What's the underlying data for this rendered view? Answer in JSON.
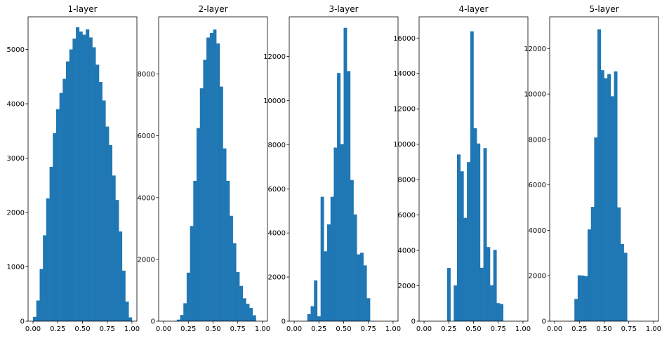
{
  "colors": {
    "bar": "#1f77b4",
    "axis": "#000000",
    "background": "#ffffff"
  },
  "chart_data": [
    {
      "type": "bar",
      "title": "1-layer",
      "xlabel": "",
      "ylabel": "",
      "xlim": [
        -0.05,
        1.05
      ],
      "ylim": [
        0,
        5600
      ],
      "xticks": [
        "0.00",
        "0.25",
        "0.50",
        "0.75",
        "1.00"
      ],
      "yticks": [
        "0",
        "1000",
        "2000",
        "3000",
        "4000",
        "5000"
      ],
      "bins": [
        [
          0.0,
          0.033
        ],
        [
          0.033,
          0.067
        ],
        [
          0.067,
          0.1
        ],
        [
          0.1,
          0.133
        ],
        [
          0.133,
          0.167
        ],
        [
          0.167,
          0.2
        ],
        [
          0.2,
          0.233
        ],
        [
          0.233,
          0.267
        ],
        [
          0.267,
          0.3
        ],
        [
          0.3,
          0.333
        ],
        [
          0.333,
          0.367
        ],
        [
          0.367,
          0.4
        ],
        [
          0.4,
          0.433
        ],
        [
          0.433,
          0.467
        ],
        [
          0.467,
          0.5
        ],
        [
          0.5,
          0.533
        ],
        [
          0.533,
          0.567
        ],
        [
          0.567,
          0.6
        ],
        [
          0.6,
          0.633
        ],
        [
          0.633,
          0.667
        ],
        [
          0.667,
          0.7
        ],
        [
          0.7,
          0.733
        ],
        [
          0.733,
          0.767
        ],
        [
          0.767,
          0.8
        ],
        [
          0.8,
          0.833
        ],
        [
          0.833,
          0.867
        ],
        [
          0.867,
          0.9
        ],
        [
          0.9,
          0.933
        ],
        [
          0.933,
          0.967
        ],
        [
          0.967,
          1.0
        ]
      ],
      "values": [
        80,
        380,
        960,
        1580,
        2260,
        2840,
        3460,
        3900,
        4200,
        4460,
        4780,
        5000,
        5200,
        5410,
        5330,
        5270,
        5370,
        5220,
        5040,
        4720,
        4400,
        4060,
        3580,
        3240,
        2680,
        2230,
        1650,
        930,
        360,
        70
      ]
    },
    {
      "type": "bar",
      "title": "2-layer",
      "xlabel": "",
      "ylabel": "",
      "xlim": [
        -0.05,
        1.05
      ],
      "ylim": [
        0,
        9850
      ],
      "xticks": [
        "0.00",
        "0.25",
        "0.50",
        "0.75",
        "1.00"
      ],
      "yticks": [
        "0",
        "2000",
        "4000",
        "6000",
        "8000"
      ],
      "bins": [
        [
          0.133,
          0.167
        ],
        [
          0.167,
          0.2
        ],
        [
          0.2,
          0.233
        ],
        [
          0.233,
          0.267
        ],
        [
          0.267,
          0.3
        ],
        [
          0.3,
          0.333
        ],
        [
          0.333,
          0.367
        ],
        [
          0.367,
          0.4
        ],
        [
          0.4,
          0.433
        ],
        [
          0.433,
          0.467
        ],
        [
          0.467,
          0.5
        ],
        [
          0.5,
          0.533
        ],
        [
          0.533,
          0.567
        ],
        [
          0.567,
          0.6
        ],
        [
          0.6,
          0.633
        ],
        [
          0.633,
          0.667
        ],
        [
          0.667,
          0.7
        ],
        [
          0.7,
          0.733
        ],
        [
          0.733,
          0.767
        ],
        [
          0.767,
          0.8
        ],
        [
          0.8,
          0.833
        ],
        [
          0.833,
          0.867
        ],
        [
          0.867,
          0.9
        ],
        [
          0.9,
          0.933
        ]
      ],
      "values": [
        50,
        200,
        580,
        1570,
        3080,
        4540,
        6250,
        7540,
        8460,
        9180,
        9330,
        9440,
        8990,
        7590,
        5590,
        4540,
        3410,
        2520,
        1590,
        1140,
        740,
        560,
        430,
        190
      ]
    },
    {
      "type": "bar",
      "title": "3-layer",
      "xlabel": "",
      "ylabel": "",
      "xlim": [
        -0.05,
        1.05
      ],
      "ylim": [
        0,
        13800
      ],
      "xticks": [
        "0.00",
        "0.25",
        "0.50",
        "0.75",
        "1.00"
      ],
      "yticks": [
        "0",
        "2000",
        "4000",
        "6000",
        "8000",
        "10000",
        "12000"
      ],
      "bins": [
        [
          0.133,
          0.167
        ],
        [
          0.167,
          0.2
        ],
        [
          0.2,
          0.233
        ],
        [
          0.233,
          0.267
        ],
        [
          0.267,
          0.3
        ],
        [
          0.3,
          0.333
        ],
        [
          0.333,
          0.367
        ],
        [
          0.367,
          0.4
        ],
        [
          0.4,
          0.433
        ],
        [
          0.433,
          0.467
        ],
        [
          0.467,
          0.5
        ],
        [
          0.5,
          0.533
        ],
        [
          0.533,
          0.567
        ],
        [
          0.567,
          0.6
        ],
        [
          0.6,
          0.633
        ],
        [
          0.633,
          0.667
        ],
        [
          0.667,
          0.7
        ],
        [
          0.7,
          0.733
        ],
        [
          0.733,
          0.767
        ]
      ],
      "values": [
        320,
        680,
        1850,
        220,
        5640,
        3170,
        4390,
        5640,
        7870,
        11250,
        8030,
        13300,
        11340,
        6400,
        4840,
        3030,
        3100,
        2530,
        1040
      ]
    },
    {
      "type": "bar",
      "title": "4-layer",
      "xlabel": "",
      "ylabel": "",
      "xlim": [
        -0.05,
        1.05
      ],
      "ylim": [
        0,
        17200
      ],
      "xticks": [
        "0.00",
        "0.25",
        "0.50",
        "0.75",
        "1.00"
      ],
      "yticks": [
        "0",
        "2000",
        "4000",
        "6000",
        "8000",
        "10000",
        "12000",
        "14000",
        "16000"
      ],
      "bins": [
        [
          0.233,
          0.267
        ],
        [
          0.3,
          0.333
        ],
        [
          0.333,
          0.367
        ],
        [
          0.367,
          0.4
        ],
        [
          0.4,
          0.433
        ],
        [
          0.433,
          0.467
        ],
        [
          0.467,
          0.5
        ],
        [
          0.5,
          0.533
        ],
        [
          0.533,
          0.567
        ],
        [
          0.567,
          0.6
        ],
        [
          0.6,
          0.633
        ],
        [
          0.633,
          0.667
        ],
        [
          0.667,
          0.7
        ],
        [
          0.7,
          0.733
        ],
        [
          0.733,
          0.767
        ],
        [
          0.767,
          0.8
        ]
      ],
      "values": [
        3010,
        2020,
        9420,
        8470,
        5840,
        8990,
        16380,
        10910,
        10040,
        3020,
        9780,
        4190,
        2030,
        4030,
        1020,
        970
      ]
    },
    {
      "type": "bar",
      "title": "5-layer",
      "xlabel": "",
      "ylabel": "",
      "xlim": [
        -0.05,
        1.05
      ],
      "ylim": [
        0,
        13400
      ],
      "xticks": [
        "0.00",
        "0.25",
        "0.50",
        "0.75",
        "1.00"
      ],
      "yticks": [
        "0",
        "2000",
        "4000",
        "6000",
        "8000",
        "10000",
        "12000"
      ],
      "bins": [
        [
          0.2,
          0.233
        ],
        [
          0.233,
          0.267
        ],
        [
          0.267,
          0.3
        ],
        [
          0.3,
          0.333
        ],
        [
          0.333,
          0.367
        ],
        [
          0.367,
          0.4
        ],
        [
          0.4,
          0.433
        ],
        [
          0.433,
          0.467
        ],
        [
          0.467,
          0.5
        ],
        [
          0.5,
          0.533
        ],
        [
          0.533,
          0.567
        ],
        [
          0.567,
          0.6
        ],
        [
          0.6,
          0.633
        ],
        [
          0.633,
          0.667
        ],
        [
          0.667,
          0.7
        ],
        [
          0.7,
          0.733
        ]
      ],
      "values": [
        980,
        2020,
        2010,
        1980,
        4040,
        5030,
        8090,
        12850,
        11050,
        10700,
        10880,
        9900,
        11000,
        5010,
        3400,
        3010
      ]
    }
  ]
}
